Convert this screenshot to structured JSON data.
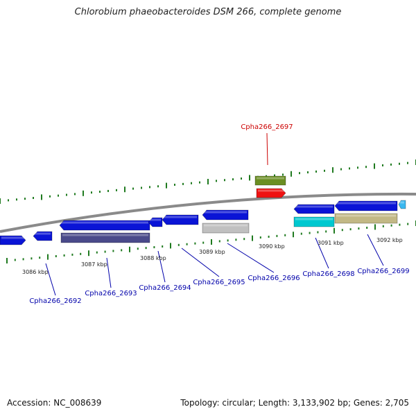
{
  "title": "Chlorobium phaeobacteroides DSM 266, complete genome",
  "footer": {
    "accession": "Accession: NC_008639",
    "summary": "Topology: circular; Length: 3,133,902 bp; Genes: 2,705"
  },
  "colors": {
    "backbone": "#8a8a8a",
    "tick": "#1f7a1f",
    "highlight_label": "#cc0000",
    "gene_label": "#0000aa",
    "scale_label": "#222222"
  },
  "scale_labels": [
    "3086 kbp",
    "3087 kbp",
    "3088 kbp",
    "3089 kbp",
    "3090 kbp",
    "3091 kbp",
    "3092 kbp"
  ],
  "gene_labels": [
    {
      "text": "Cpha266_2697",
      "highlight": true
    },
    {
      "text": "Cpha266_2692",
      "highlight": false
    },
    {
      "text": "Cpha266_2693",
      "highlight": false
    },
    {
      "text": "Cpha266_2694",
      "highlight": false
    },
    {
      "text": "Cpha266_2695",
      "highlight": false
    },
    {
      "text": "Cpha266_2696",
      "highlight": false
    },
    {
      "text": "Cpha266_2698",
      "highlight": false
    },
    {
      "text": "Cpha266_2699",
      "highlight": false
    }
  ],
  "features": [
    {
      "name": "gene-lower-left-edge",
      "color": "#0a14d6",
      "dir": "right"
    },
    {
      "name": "gene-2692",
      "color": "#0a14d6",
      "dir": "left"
    },
    {
      "name": "gene-2693",
      "color": "#0a14d6",
      "dir": "left"
    },
    {
      "name": "cds-2693",
      "color": "#4a4a8a",
      "dir": "none"
    },
    {
      "name": "gene-2694",
      "color": "#0a14d6",
      "dir": "left"
    },
    {
      "name": "gene-2695",
      "color": "#0a14d6",
      "dir": "left"
    },
    {
      "name": "gene-2696",
      "color": "#0a14d6",
      "dir": "left"
    },
    {
      "name": "feature-2696-grey",
      "color": "#c0c0c0",
      "dir": "none"
    },
    {
      "name": "gene-2697-olive",
      "color": "#6b8e23",
      "dir": "none"
    },
    {
      "name": "gene-2697-red",
      "color": "#ee1111",
      "dir": "right"
    },
    {
      "name": "gene-2698",
      "color": "#0a14d6",
      "dir": "left"
    },
    {
      "name": "feature-2698-cyan",
      "color": "#00c8d0",
      "dir": "none"
    },
    {
      "name": "gene-2699",
      "color": "#0a14d6",
      "dir": "left"
    },
    {
      "name": "feature-2699-khaki",
      "color": "#c2b885",
      "dir": "none"
    },
    {
      "name": "gene-next-edge",
      "color": "#3ab8f0",
      "dir": "left"
    }
  ]
}
